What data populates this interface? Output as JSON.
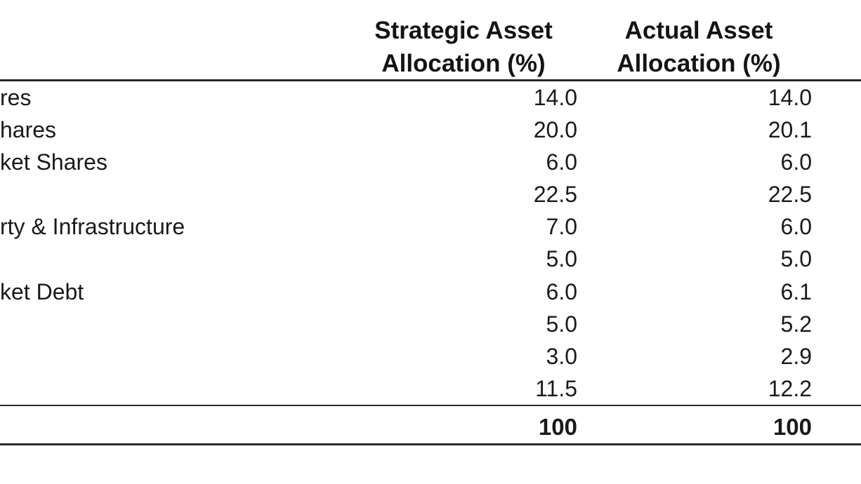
{
  "table": {
    "headers": {
      "strategic_line1": "Strategic Asset",
      "strategic_line2": "Allocation (%)",
      "actual_line1": "Actual Asset",
      "actual_line2": "Allocation (%)"
    },
    "rows": [
      {
        "label": "res",
        "strategic": "14.0",
        "actual": "14.0"
      },
      {
        "label": "hares",
        "strategic": "20.0",
        "actual": "20.1"
      },
      {
        "label": "ket Shares",
        "strategic": "6.0",
        "actual": "6.0"
      },
      {
        "label": "",
        "strategic": "22.5",
        "actual": "22.5"
      },
      {
        "label": "rty & Infrastructure",
        "strategic": "7.0",
        "actual": "6.0"
      },
      {
        "label": "",
        "strategic": "5.0",
        "actual": "5.0"
      },
      {
        "label": "ket Debt",
        "strategic": "6.0",
        "actual": "6.1"
      },
      {
        "label": "",
        "strategic": "5.0",
        "actual": "5.2"
      },
      {
        "label": "",
        "strategic": "3.0",
        "actual": "2.9"
      },
      {
        "label": "",
        "strategic": "11.5",
        "actual": "12.2"
      }
    ],
    "total": {
      "label": "",
      "strategic": "100",
      "actual": "100"
    }
  }
}
